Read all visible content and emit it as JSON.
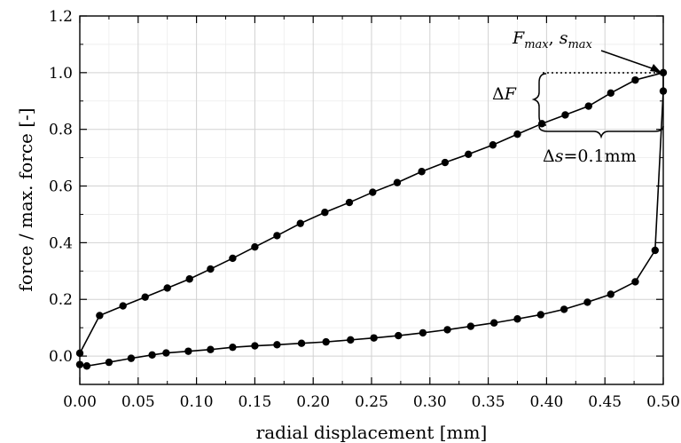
{
  "chart_data": {
    "type": "line",
    "title": "",
    "xlabel": "radial displacement [mm]",
    "ylabel": "force / max. force [-]",
    "xlim": [
      0.0,
      0.5
    ],
    "ylim": [
      -0.1,
      1.2
    ],
    "xticks": [
      0.0,
      0.05,
      0.1,
      0.15,
      0.2,
      0.25,
      0.3,
      0.35,
      0.4,
      0.45,
      0.5
    ],
    "xtick_labels": [
      "0.00",
      "0.05",
      "0.10",
      "0.15",
      "0.20",
      "0.25",
      "0.30",
      "0.35",
      "0.40",
      "0.45",
      "0.50"
    ],
    "yticks": [
      0.0,
      0.2,
      0.4,
      0.6,
      0.8,
      1.0,
      1.2
    ],
    "ytick_labels": [
      "0.0",
      "0.2",
      "0.4",
      "0.6",
      "0.8",
      "1.0",
      "1.2"
    ],
    "grid": true,
    "series": [
      {
        "values": [
          [
            0.0,
            0.01
          ],
          [
            0.017,
            0.143
          ],
          [
            0.037,
            0.177
          ],
          [
            0.056,
            0.208
          ],
          [
            0.075,
            0.24
          ],
          [
            0.094,
            0.272
          ],
          [
            0.112,
            0.307
          ],
          [
            0.131,
            0.345
          ],
          [
            0.15,
            0.385
          ],
          [
            0.169,
            0.425
          ],
          [
            0.189,
            0.468
          ],
          [
            0.21,
            0.507
          ],
          [
            0.231,
            0.542
          ],
          [
            0.251,
            0.578
          ],
          [
            0.272,
            0.612
          ],
          [
            0.293,
            0.651
          ],
          [
            0.313,
            0.683
          ],
          [
            0.333,
            0.712
          ],
          [
            0.354,
            0.745
          ],
          [
            0.375,
            0.783
          ],
          [
            0.396,
            0.82
          ],
          [
            0.416,
            0.851
          ],
          [
            0.436,
            0.882
          ],
          [
            0.455,
            0.928
          ],
          [
            0.476,
            0.974
          ],
          [
            0.5,
            1.0
          ],
          [
            0.5,
            0.935
          ],
          [
            0.493,
            0.373
          ],
          [
            0.476,
            0.262
          ],
          [
            0.455,
            0.218
          ],
          [
            0.435,
            0.19
          ],
          [
            0.415,
            0.165
          ],
          [
            0.395,
            0.146
          ],
          [
            0.375,
            0.131
          ],
          [
            0.355,
            0.117
          ],
          [
            0.335,
            0.105
          ],
          [
            0.315,
            0.093
          ],
          [
            0.294,
            0.082
          ],
          [
            0.273,
            0.072
          ],
          [
            0.252,
            0.064
          ],
          [
            0.232,
            0.057
          ],
          [
            0.211,
            0.05
          ],
          [
            0.19,
            0.045
          ],
          [
            0.169,
            0.04
          ],
          [
            0.15,
            0.036
          ],
          [
            0.131,
            0.031
          ],
          [
            0.112,
            0.023
          ],
          [
            0.093,
            0.017
          ],
          [
            0.074,
            0.011
          ],
          [
            0.062,
            0.004
          ],
          [
            0.044,
            -0.008
          ],
          [
            0.025,
            -0.022
          ],
          [
            0.006,
            -0.035
          ],
          [
            0.0,
            -0.03
          ]
        ]
      }
    ],
    "annotations": {
      "peak_F": "F",
      "peak_F_sub": "max",
      "peak_sep": ", ",
      "peak_s": "s",
      "peak_s_sub": "max",
      "delta_F_symbol": "Δ",
      "delta_F_var": "F",
      "delta_s_symbol": "Δ",
      "delta_s_var": "s",
      "delta_s_value": "=0.1mm"
    }
  }
}
